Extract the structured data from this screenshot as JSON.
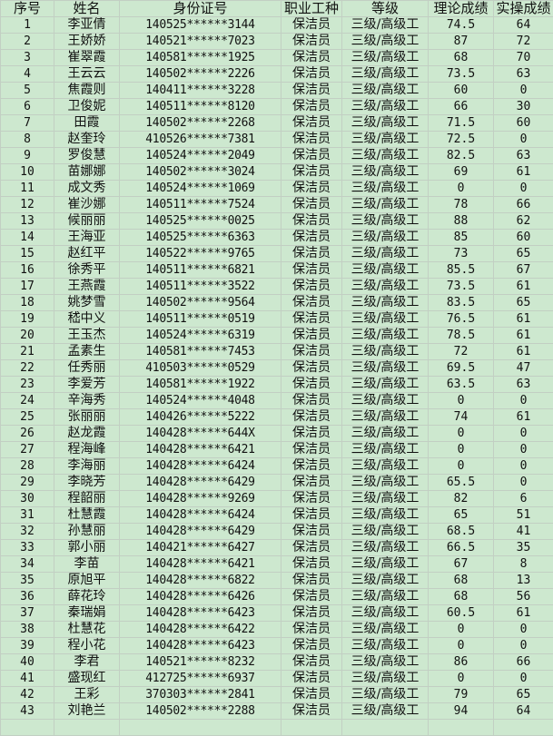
{
  "headers": [
    "序号",
    "姓名",
    "身份证号",
    "职业工种",
    "等级",
    "理论成绩",
    "实操成绩"
  ],
  "rows": [
    [
      "1",
      "李亚倩",
      "140525******3144",
      "保洁员",
      "三级/高级工",
      "74.5",
      "64"
    ],
    [
      "2",
      "王娇娇",
      "140521******7023",
      "保洁员",
      "三级/高级工",
      "87",
      "72"
    ],
    [
      "3",
      "崔翠霞",
      "140581******1925",
      "保洁员",
      "三级/高级工",
      "68",
      "70"
    ],
    [
      "4",
      "王云云",
      "140502******2226",
      "保洁员",
      "三级/高级工",
      "73.5",
      "63"
    ],
    [
      "5",
      "焦霞则",
      "140411******3228",
      "保洁员",
      "三级/高级工",
      "60",
      "0"
    ],
    [
      "6",
      "卫俊妮",
      "140511******8120",
      "保洁员",
      "三级/高级工",
      "66",
      "30"
    ],
    [
      "7",
      "田霞",
      "140502******2268",
      "保洁员",
      "三级/高级工",
      "71.5",
      "60"
    ],
    [
      "8",
      "赵奎玲",
      "410526******7381",
      "保洁员",
      "三级/高级工",
      "72.5",
      "0"
    ],
    [
      "9",
      "罗俊慧",
      "140524******2049",
      "保洁员",
      "三级/高级工",
      "82.5",
      "63"
    ],
    [
      "10",
      "苗娜娜",
      "140502******3024",
      "保洁员",
      "三级/高级工",
      "69",
      "61"
    ],
    [
      "11",
      "成文秀",
      "140524******1069",
      "保洁员",
      "三级/高级工",
      "0",
      "0"
    ],
    [
      "12",
      "崔沙娜",
      "140511******7524",
      "保洁员",
      "三级/高级工",
      "78",
      "66"
    ],
    [
      "13",
      "候丽丽",
      "140525******0025",
      "保洁员",
      "三级/高级工",
      "88",
      "62"
    ],
    [
      "14",
      "王海亚",
      "140525******6363",
      "保洁员",
      "三级/高级工",
      "85",
      "60"
    ],
    [
      "15",
      "赵红平",
      "140522******9765",
      "保洁员",
      "三级/高级工",
      "73",
      "65"
    ],
    [
      "16",
      "徐秀平",
      "140511******6821",
      "保洁员",
      "三级/高级工",
      "85.5",
      "67"
    ],
    [
      "17",
      "王燕霞",
      "140511******3522",
      "保洁员",
      "三级/高级工",
      "73.5",
      "61"
    ],
    [
      "18",
      "姚梦雪",
      "140502******9564",
      "保洁员",
      "三级/高级工",
      "83.5",
      "65"
    ],
    [
      "19",
      "嵇中义",
      "140511******0519",
      "保洁员",
      "三级/高级工",
      "76.5",
      "61"
    ],
    [
      "20",
      "王玉杰",
      "140524******6319",
      "保洁员",
      "三级/高级工",
      "78.5",
      "61"
    ],
    [
      "21",
      "孟素生",
      "140581******7453",
      "保洁员",
      "三级/高级工",
      "72",
      "61"
    ],
    [
      "22",
      "任秀丽",
      "410503******0529",
      "保洁员",
      "三级/高级工",
      "69.5",
      "47"
    ],
    [
      "23",
      "李爱芳",
      "140581******1922",
      "保洁员",
      "三级/高级工",
      "63.5",
      "63"
    ],
    [
      "24",
      "辛海秀",
      "140524******4048",
      "保洁员",
      "三级/高级工",
      "0",
      "0"
    ],
    [
      "25",
      "张丽丽",
      "140426******5222",
      "保洁员",
      "三级/高级工",
      "74",
      "61"
    ],
    [
      "26",
      "赵龙霞",
      "140428******644X",
      "保洁员",
      "三级/高级工",
      "0",
      "0"
    ],
    [
      "27",
      "程海峰",
      "140428******6421",
      "保洁员",
      "三级/高级工",
      "0",
      "0"
    ],
    [
      "28",
      "李海丽",
      "140428******6424",
      "保洁员",
      "三级/高级工",
      "0",
      "0"
    ],
    [
      "29",
      "李晓芳",
      "140428******6429",
      "保洁员",
      "三级/高级工",
      "65.5",
      "0"
    ],
    [
      "30",
      "程韶丽",
      "140428******9269",
      "保洁员",
      "三级/高级工",
      "82",
      "6"
    ],
    [
      "31",
      "杜慧霞",
      "140428******6424",
      "保洁员",
      "三级/高级工",
      "65",
      "51"
    ],
    [
      "32",
      "孙慧丽",
      "140428******6429",
      "保洁员",
      "三级/高级工",
      "68.5",
      "41"
    ],
    [
      "33",
      "郭小丽",
      "140421******6427",
      "保洁员",
      "三级/高级工",
      "66.5",
      "35"
    ],
    [
      "34",
      "李苗",
      "140428******6421",
      "保洁员",
      "三级/高级工",
      "67",
      "8"
    ],
    [
      "35",
      "原旭平",
      "140428******6822",
      "保洁员",
      "三级/高级工",
      "68",
      "13"
    ],
    [
      "36",
      "薛花玲",
      "140428******6426",
      "保洁员",
      "三级/高级工",
      "68",
      "56"
    ],
    [
      "37",
      "秦瑞娟",
      "140428******6423",
      "保洁员",
      "三级/高级工",
      "60.5",
      "61"
    ],
    [
      "38",
      "杜慧花",
      "140428******6422",
      "保洁员",
      "三级/高级工",
      "0",
      "0"
    ],
    [
      "39",
      "程小花",
      "140428******6423",
      "保洁员",
      "三级/高级工",
      "0",
      "0"
    ],
    [
      "40",
      "李君",
      "140521******8232",
      "保洁员",
      "三级/高级工",
      "86",
      "66"
    ],
    [
      "41",
      "盛现红",
      "412725******6937",
      "保洁员",
      "三级/高级工",
      "0",
      "0"
    ],
    [
      "42",
      "王彩",
      "370303******2841",
      "保洁员",
      "三级/高级工",
      "79",
      "65"
    ],
    [
      "43",
      "刘艳兰",
      "140502******2288",
      "保洁员",
      "三级/高级工",
      "94",
      "64"
    ]
  ],
  "colors": {
    "background": "#cde8cf",
    "grid": "#c2cfc3"
  }
}
